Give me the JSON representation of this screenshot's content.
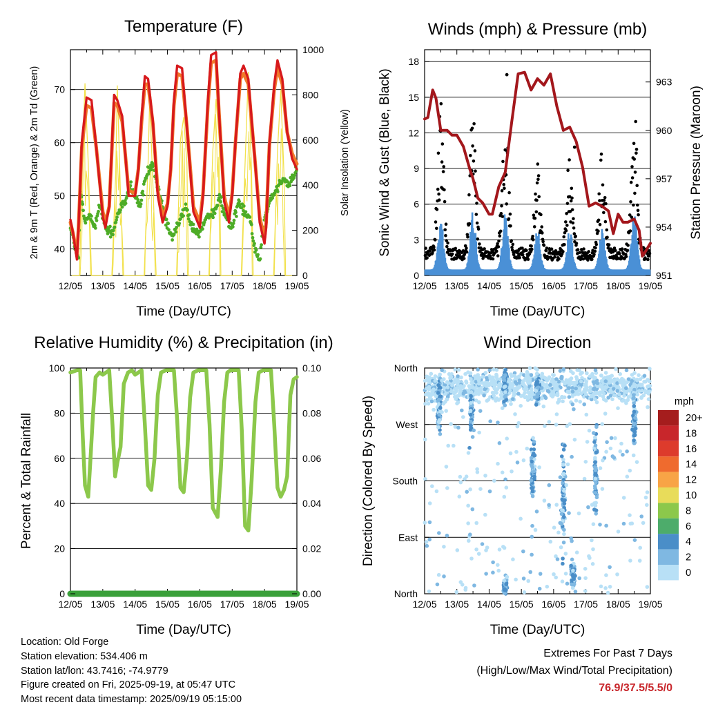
{
  "chart_data": [
    {
      "type": "line",
      "title": "Temperature (F)",
      "xlabel": "Time (Day/UTC)",
      "ylabel": "2m & 9m T (Red, Orange) & 2m Td (Green)",
      "y2label": "Solar Insolation (Yellow)",
      "x_ticks": [
        "12/05",
        "13/05",
        "14/05",
        "15/05",
        "16/05",
        "17/05",
        "18/05",
        "19/05"
      ],
      "y_ticks": [
        "40",
        "50",
        "60",
        "70"
      ],
      "y2_ticks": [
        "0",
        "200",
        "400",
        "600",
        "800",
        "1000"
      ],
      "xlim": [
        0,
        7
      ],
      "ylim": [
        35,
        77.5
      ],
      "y2lim": [
        0,
        1000
      ],
      "grid": true,
      "colors": {
        "t2m": "#d7191c",
        "t9m": "#f0782a",
        "td": "#4dac26",
        "solar": "#f2e14c"
      },
      "series": [
        {
          "key": "t2m",
          "x": [
            0,
            0.08,
            0.2,
            0.25,
            0.35,
            0.5,
            0.65,
            0.8,
            1.0,
            1.08,
            1.2,
            1.3,
            1.35,
            1.45,
            1.6,
            1.8,
            2.0,
            2.1,
            2.2,
            2.3,
            2.4,
            2.55,
            2.7,
            2.85,
            3.0,
            3.1,
            3.2,
            3.3,
            3.45,
            3.6,
            3.8,
            4.0,
            4.1,
            4.25,
            4.35,
            4.5,
            4.6,
            4.75,
            4.9,
            5.0,
            5.1,
            5.25,
            5.35,
            5.5,
            5.7,
            5.85,
            6.0,
            6.05,
            6.15,
            6.3,
            6.4,
            6.55,
            6.7,
            6.85,
            7.0
          ],
          "values": [
            45.5,
            43,
            38,
            44,
            60,
            68.5,
            68,
            59,
            46,
            44,
            48,
            62,
            69,
            68,
            65,
            50,
            50,
            55,
            65,
            72.5,
            72,
            64,
            50,
            45,
            48,
            55,
            68,
            74.5,
            74,
            63,
            47,
            44,
            50,
            68,
            76.5,
            77,
            65,
            49,
            45,
            50,
            60,
            73,
            74.5,
            72,
            57,
            45,
            41,
            44,
            60,
            71,
            75.5,
            72,
            62,
            57,
            55
          ]
        },
        {
          "key": "t9m",
          "x": [
            0,
            0.08,
            0.2,
            0.25,
            0.35,
            0.5,
            0.65,
            0.8,
            1.0,
            1.08,
            1.2,
            1.3,
            1.35,
            1.45,
            1.6,
            1.8,
            2.0,
            2.1,
            2.2,
            2.3,
            2.4,
            2.55,
            2.7,
            2.85,
            3.0,
            3.1,
            3.2,
            3.3,
            3.45,
            3.6,
            3.8,
            4.0,
            4.1,
            4.25,
            4.35,
            4.5,
            4.6,
            4.75,
            4.9,
            5.0,
            5.1,
            5.25,
            5.35,
            5.5,
            5.7,
            5.85,
            6.0,
            6.05,
            6.15,
            6.3,
            6.4,
            6.55,
            6.7,
            6.85,
            7.0
          ],
          "values": [
            45,
            43,
            39,
            44,
            59,
            67,
            66.5,
            59,
            47,
            45,
            48,
            61,
            67.5,
            67,
            64,
            51,
            50.5,
            55,
            64,
            71,
            71,
            63.5,
            51,
            46,
            48.5,
            55,
            67,
            73,
            72.5,
            63,
            48,
            45,
            50.5,
            67,
            75,
            75.5,
            65,
            50,
            46,
            50.5,
            60,
            72,
            73,
            71,
            57,
            46,
            42,
            45,
            59.5,
            70,
            74,
            71,
            62,
            58,
            56
          ]
        },
        {
          "key": "td",
          "x": [
            0,
            0.15,
            0.25,
            0.3,
            0.45,
            0.6,
            0.75,
            0.9,
            1.1,
            1.3,
            1.5,
            1.7,
            1.85,
            2.0,
            2.15,
            2.35,
            2.55,
            2.75,
            2.95,
            3.15,
            3.35,
            3.55,
            3.75,
            4.0,
            4.2,
            4.4,
            4.6,
            4.8,
            5.0,
            5.2,
            5.4,
            5.55,
            5.7,
            5.85,
            6.0,
            6.15,
            6.35,
            6.55,
            6.75,
            7.0
          ],
          "values": [
            44,
            40,
            38,
            51,
            45,
            47,
            44,
            48,
            44,
            43,
            47,
            49,
            52,
            50,
            48,
            54,
            56,
            50,
            45,
            42,
            45,
            48,
            44,
            43,
            46,
            46,
            50,
            46,
            44,
            49,
            47,
            46,
            40,
            38,
            46,
            49,
            51,
            53,
            52,
            55
          ]
        },
        {
          "key": "solar",
          "x": [
            0.05,
            0.28,
            0.4,
            0.45,
            0.55,
            0.65,
            0.95,
            1.28,
            1.4,
            1.45,
            1.55,
            1.65,
            1.95,
            2.28,
            2.4,
            2.45,
            2.55,
            2.65,
            2.95,
            3.28,
            3.4,
            3.5,
            3.6,
            3.65,
            3.95,
            4.28,
            4.4,
            4.5,
            4.6,
            4.65,
            4.95,
            5.28,
            5.4,
            5.5,
            5.6,
            5.65,
            5.95,
            6.28,
            6.4,
            6.5,
            6.6,
            6.65,
            6.95
          ],
          "values": [
            0,
            0,
            650,
            850,
            500,
            0,
            0,
            0,
            450,
            840,
            350,
            0,
            0,
            0,
            500,
            780,
            400,
            0,
            0,
            0,
            600,
            700,
            500,
            0,
            0,
            0,
            550,
            780,
            600,
            0,
            0,
            0,
            500,
            900,
            450,
            0,
            0,
            0,
            550,
            820,
            450,
            0,
            0
          ]
        }
      ]
    },
    {
      "type": "scatter",
      "title": "Winds (mph) & Pressure (mb)",
      "xlabel": "Time (Day/UTC)",
      "ylabel": "Sonic Wind & Gust (Blue, Black)",
      "y2label": "Station Pressure (Maroon)",
      "x_ticks": [
        "12/05",
        "13/05",
        "14/05",
        "15/05",
        "16/05",
        "17/05",
        "18/05",
        "19/05"
      ],
      "y_ticks": [
        "0",
        "3",
        "6",
        "9",
        "12",
        "15",
        "18"
      ],
      "y2_ticks": [
        "951",
        "954",
        "957",
        "960",
        "963"
      ],
      "xlim": [
        0,
        7
      ],
      "ylim": [
        0,
        19
      ],
      "y2lim": [
        951,
        965
      ],
      "grid": true,
      "colors": {
        "wind": "#4a90d6",
        "gust": "#000000",
        "pressure": "#a3171c"
      },
      "wind_daily_peak": [
        4.5,
        5.0,
        5.0,
        3.5,
        3.5,
        3.5,
        5.5
      ],
      "gust_daily_peak": [
        13.5,
        13.0,
        13.5,
        8.0,
        8.5,
        9.0,
        13.0
      ],
      "gust_outliers": [
        {
          "x": 2.55,
          "y": 16.9
        },
        {
          "x": 4.65,
          "y": 10.8
        }
      ],
      "series": [
        {
          "key": "pressure",
          "x": [
            0,
            0.1,
            0.25,
            0.35,
            0.5,
            0.7,
            0.85,
            1.0,
            1.2,
            1.4,
            1.5,
            1.65,
            1.8,
            2.0,
            2.1,
            2.3,
            2.5,
            2.7,
            2.9,
            3.1,
            3.3,
            3.5,
            3.7,
            3.9,
            4.1,
            4.3,
            4.5,
            4.7,
            4.9,
            5.1,
            5.3,
            5.5,
            5.7,
            5.85,
            6.0,
            6.15,
            6.3,
            6.5,
            6.65,
            6.75,
            6.85,
            7.0
          ],
          "values": [
            960.7,
            960.8,
            962.5,
            962,
            960,
            960,
            959.7,
            959.7,
            959,
            957.6,
            957,
            955.8,
            955.5,
            954.8,
            954.8,
            956.5,
            957.4,
            960.5,
            963.5,
            963.6,
            962.5,
            963.2,
            962.8,
            963.5,
            961.5,
            960,
            960.2,
            959.3,
            957.7,
            955.3,
            955.5,
            955.3,
            955,
            953.6,
            954.8,
            954.3,
            954.3,
            954.5,
            953.8,
            952.2,
            952.5,
            953
          ]
        }
      ]
    },
    {
      "type": "line",
      "title": "Relative Humidity (%) & Precipitation (in)",
      "xlabel": "Time (Day/UTC)",
      "ylabel": "Percent & Total Rainfall",
      "x_ticks": [
        "12/05",
        "13/05",
        "14/05",
        "15/05",
        "16/05",
        "17/05",
        "18/05",
        "19/05"
      ],
      "y_ticks": [
        "0",
        "20",
        "40",
        "60",
        "80",
        "100"
      ],
      "y2_ticks": [
        "0.00",
        "0.02",
        "0.04",
        "0.06",
        "0.08",
        "0.10"
      ],
      "xlim": [
        0,
        7
      ],
      "ylim": [
        0,
        100
      ],
      "y2lim": [
        0,
        0.1
      ],
      "grid": true,
      "colors": {
        "rh": "#8cc84b",
        "precip": "#3aa03a"
      },
      "series": [
        {
          "key": "rh",
          "x": [
            0,
            0.2,
            0.3,
            0.38,
            0.45,
            0.55,
            0.62,
            0.7,
            0.78,
            0.9,
            1.0,
            1.2,
            1.3,
            1.38,
            1.45,
            1.55,
            1.65,
            1.78,
            1.9,
            2.0,
            2.2,
            2.3,
            2.4,
            2.5,
            2.6,
            2.7,
            2.8,
            2.95,
            3.2,
            3.3,
            3.4,
            3.5,
            3.6,
            3.7,
            3.8,
            3.95,
            4.2,
            4.3,
            4.4,
            4.55,
            4.65,
            4.75,
            4.85,
            4.95,
            5.2,
            5.3,
            5.4,
            5.5,
            5.6,
            5.72,
            5.82,
            5.95,
            6.2,
            6.3,
            6.4,
            6.5,
            6.6,
            6.7,
            6.8,
            6.9,
            7.0
          ],
          "values": [
            98,
            99,
            99,
            70,
            48,
            43,
            60,
            80,
            96,
            98,
            97,
            99,
            75,
            52,
            58,
            65,
            93,
            98,
            99,
            97,
            99,
            75,
            48,
            46,
            60,
            88,
            98,
            99,
            99,
            77,
            47,
            45,
            60,
            87,
            98,
            99,
            99,
            75,
            38,
            34,
            55,
            85,
            98,
            99,
            99,
            72,
            30,
            28,
            50,
            85,
            98,
            99,
            99,
            75,
            47,
            43,
            46,
            52,
            88,
            95,
            96
          ]
        },
        {
          "key": "precip",
          "x": [
            0,
            7
          ],
          "values": [
            0,
            0
          ]
        }
      ]
    },
    {
      "type": "scatter",
      "title": "Wind Direction",
      "xlabel": "Time (Day/UTC)",
      "ylabel": "Direction (Colored By Speed)",
      "x_ticks": [
        "12/05",
        "13/05",
        "14/05",
        "15/05",
        "16/05",
        "17/05",
        "18/05",
        "19/05"
      ],
      "y_ticks": [
        "North",
        "East",
        "South",
        "West",
        "North"
      ],
      "xlim": [
        0,
        7
      ],
      "ylim": [
        0,
        360
      ],
      "grid": true,
      "legend_position": "right",
      "colorbar": {
        "title": "mph",
        "labels": [
          "20+",
          "18",
          "16",
          "14",
          "12",
          "10",
          "8",
          "6",
          "4",
          "2",
          "0"
        ],
        "colors": [
          "#a51d1d",
          "#c8262b",
          "#dd3b2c",
          "#ef6b2e",
          "#f8a446",
          "#e8dc5a",
          "#8cc84b",
          "#4dac6b",
          "#4a8ec8",
          "#7fb8e2",
          "#b8e0f6"
        ]
      },
      "direction_clusters": [
        {
          "x": 0.45,
          "y": 300,
          "spread": 60
        },
        {
          "x": 1.45,
          "y": 290,
          "spread": 60
        },
        {
          "x": 2.5,
          "y": 330,
          "spread": 40
        },
        {
          "x": 3.35,
          "y": 200,
          "spread": 60
        },
        {
          "x": 3.5,
          "y": 330,
          "spread": 35
        },
        {
          "x": 4.3,
          "y": 160,
          "spread": 120
        },
        {
          "x": 5.3,
          "y": 200,
          "spread": 90
        },
        {
          "x": 6.5,
          "y": 280,
          "spread": 70
        },
        {
          "x": 2.5,
          "y": 15,
          "spread": 20
        },
        {
          "x": 4.6,
          "y": 30,
          "spread": 30
        }
      ]
    }
  ],
  "info": {
    "location": "Location: Old Forge",
    "elevation": "Station elevation: 534.406 m",
    "latlon": "Station lat/lon: 43.7416; -74.9779",
    "created": "Figure created on Fri, 2025-09-19, at 05:47 UTC",
    "recent": "Most recent data timestamp: 2025/09/19 05:15:00"
  },
  "extremes": {
    "title": "Extremes For Past 7 Days",
    "subtitle": "(High/Low/Max Wind/Total Precipitation)",
    "values": "76.9/37.5/5.5/0"
  }
}
